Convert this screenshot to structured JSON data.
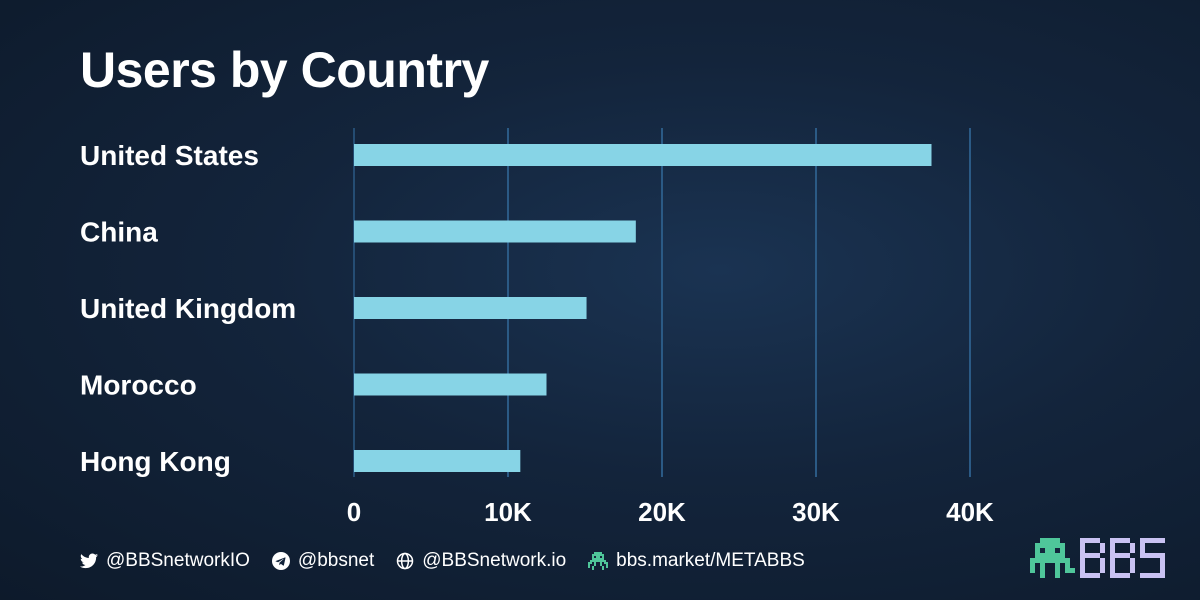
{
  "chart_data": {
    "type": "bar",
    "orientation": "horizontal",
    "title": "Users by Country",
    "categories": [
      "United States",
      "China",
      "United Kingdom",
      "Morocco",
      "Hong Kong"
    ],
    "values": [
      37500,
      18300,
      15100,
      12500,
      10800
    ],
    "xlim": [
      0,
      42000
    ],
    "x_ticks": [
      0,
      10000,
      20000,
      30000,
      40000
    ],
    "x_tick_labels": [
      "0",
      "10K",
      "20K",
      "30K",
      "40K"
    ],
    "grid": "vertical",
    "bar_color": "#87d4e6",
    "grid_color": "#2b5a85"
  },
  "footer": {
    "twitter": "@BBSnetworkIO",
    "telegram": "@bbsnet",
    "website": "@BBSnetwork.io",
    "market": "bbs.market/METABBS"
  },
  "brand": {
    "logo_text": "BBS",
    "logo_color": "#c9c2f2",
    "mascot_color": "#4fc69a"
  }
}
